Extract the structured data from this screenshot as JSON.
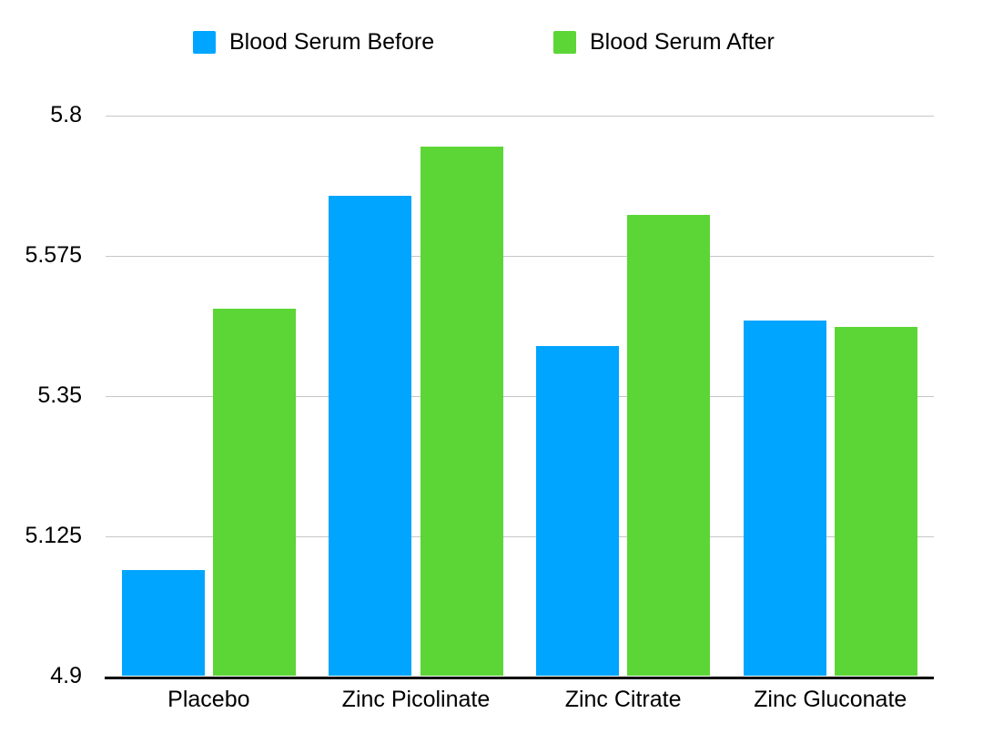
{
  "chart_data": {
    "type": "bar",
    "title": "",
    "xlabel": "",
    "ylabel": "",
    "categories": [
      "Placebo",
      "Zinc Picolinate",
      "Zinc Citrate",
      "Zinc Gluconate"
    ],
    "series": [
      {
        "name": "Blood Serum Before",
        "color": "#00A5FF",
        "values": [
          5.07,
          5.67,
          5.43,
          5.47
        ]
      },
      {
        "name": "Blood Serum After",
        "color": "#5CD636",
        "values": [
          5.49,
          5.75,
          5.64,
          5.46
        ]
      }
    ],
    "ylim": [
      4.9,
      5.8
    ],
    "yticks": [
      4.9,
      5.125,
      5.35,
      5.575,
      5.8
    ],
    "grid": true,
    "legend_position": "top",
    "gridline_color": "#c6c6c6",
    "axis_color": "#000000"
  }
}
